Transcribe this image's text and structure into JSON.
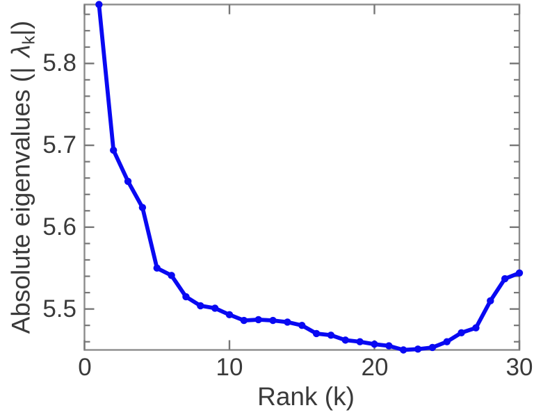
{
  "chart_data": {
    "type": "line",
    "title": "",
    "xlabel": "Rank (k)",
    "ylabel": "Absolute eigenvalues (|λ_k|)",
    "ylabel_parts": {
      "prefix": "Absolute eigenvalues (|",
      "lambda": "λ",
      "subscript": "k",
      "suffix": "|)"
    },
    "x": [
      1,
      2,
      3,
      4,
      5,
      6,
      7,
      8,
      9,
      10,
      11,
      12,
      13,
      14,
      15,
      16,
      17,
      18,
      19,
      20,
      21,
      22,
      23,
      24,
      25,
      26,
      27,
      28,
      29,
      30
    ],
    "y": [
      5.872,
      5.694,
      5.656,
      5.624,
      5.55,
      5.541,
      5.515,
      5.504,
      5.501,
      5.493,
      5.486,
      5.487,
      5.486,
      5.484,
      5.48,
      5.47,
      5.468,
      5.462,
      5.46,
      5.457,
      5.455,
      5.45,
      5.451,
      5.453,
      5.46,
      5.471,
      5.477,
      5.51,
      5.537,
      5.544
    ],
    "xlim": [
      0,
      30
    ],
    "ylim": [
      5.45,
      5.872
    ],
    "xticks": [
      0,
      10,
      20,
      30
    ],
    "yticks": [
      5.5,
      5.6,
      5.7,
      5.8
    ],
    "xtick_labels": [
      "0",
      "10",
      "20",
      "30"
    ],
    "ytick_labels": [
      "5.5",
      "5.6",
      "5.7",
      "5.8"
    ],
    "y_minor_step": 0.02,
    "grid": false,
    "legend": null,
    "box": true,
    "marker": "filled-circle",
    "colors": {
      "line": "#0909f2",
      "marker": "#0909f2",
      "axis": "#8c8c8c",
      "tick": "#777777",
      "text": "#3a3a3a",
      "background": "#ffffff"
    }
  }
}
